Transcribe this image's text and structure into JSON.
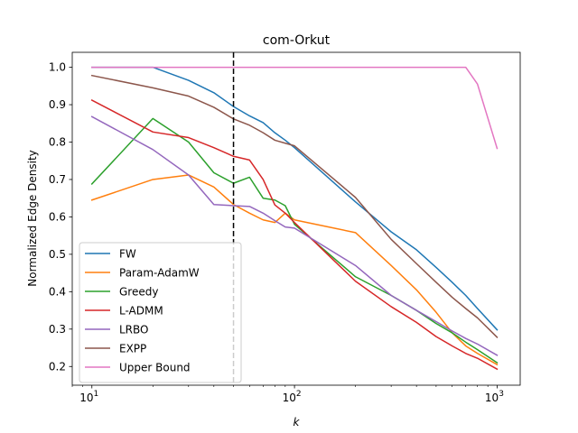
{
  "chart_data": {
    "type": "line",
    "title": "com-Orkut",
    "xlabel": "k",
    "ylabel": "Normalized Edge Density",
    "xscale": "log",
    "xlim": [
      8,
      1300
    ],
    "ylim": [
      0.15,
      1.04
    ],
    "xticks": [
      {
        "base": "10",
        "exp": "1",
        "value": 10
      },
      {
        "base": "10",
        "exp": "2",
        "value": 100
      },
      {
        "base": "10",
        "exp": "3",
        "value": 1000
      }
    ],
    "yticks": [
      "0.2",
      "0.3",
      "0.4",
      "0.5",
      "0.6",
      "0.7",
      "0.8",
      "0.9",
      "1.0"
    ],
    "vline": {
      "x": 50,
      "style": "dashed",
      "color": "#000000"
    },
    "legend_position": "lower-left",
    "series": [
      {
        "name": "FW",
        "color": "#1f77b4",
        "x": [
          10,
          20,
          30,
          40,
          50,
          60,
          70,
          80,
          90,
          100,
          200,
          300,
          400,
          500,
          600,
          700,
          800,
          1000
        ],
        "y": [
          1.0,
          1.0,
          0.965,
          0.932,
          0.895,
          0.87,
          0.852,
          0.825,
          0.805,
          0.785,
          0.64,
          0.56,
          0.512,
          0.465,
          0.425,
          0.39,
          0.355,
          0.298
        ]
      },
      {
        "name": "Param-AdamW",
        "color": "#ff7f0e",
        "x": [
          10,
          20,
          30,
          40,
          50,
          60,
          70,
          80,
          90,
          100,
          200,
          300,
          400,
          500,
          600,
          700,
          800,
          1000
        ],
        "y": [
          0.645,
          0.7,
          0.712,
          0.68,
          0.633,
          0.61,
          0.592,
          0.585,
          0.61,
          0.592,
          0.558,
          0.47,
          0.405,
          0.345,
          0.29,
          0.255,
          0.235,
          0.205
        ]
      },
      {
        "name": "Greedy",
        "color": "#2ca02c",
        "x": [
          10,
          20,
          30,
          40,
          50,
          60,
          70,
          80,
          90,
          100,
          200,
          300,
          400,
          500,
          600,
          700,
          800,
          1000
        ],
        "y": [
          0.688,
          0.863,
          0.8,
          0.718,
          0.69,
          0.706,
          0.65,
          0.645,
          0.63,
          0.58,
          0.44,
          0.39,
          0.35,
          0.315,
          0.29,
          0.265,
          0.245,
          0.21
        ]
      },
      {
        "name": "L-ADMM",
        "color": "#d62728",
        "x": [
          10,
          20,
          30,
          40,
          50,
          60,
          70,
          80,
          90,
          100,
          200,
          300,
          400,
          500,
          600,
          700,
          800,
          1000
        ],
        "y": [
          0.912,
          0.827,
          0.812,
          0.785,
          0.762,
          0.752,
          0.7,
          0.632,
          0.61,
          0.585,
          0.428,
          0.36,
          0.318,
          0.28,
          0.255,
          0.235,
          0.222,
          0.193
        ]
      },
      {
        "name": "LRBO",
        "color": "#9467bd",
        "x": [
          10,
          20,
          30,
          40,
          50,
          60,
          70,
          80,
          90,
          100,
          200,
          300,
          400,
          500,
          600,
          700,
          800,
          1000
        ],
        "y": [
          0.868,
          0.78,
          0.712,
          0.633,
          0.63,
          0.628,
          0.61,
          0.59,
          0.573,
          0.57,
          0.47,
          0.39,
          0.35,
          0.32,
          0.295,
          0.275,
          0.26,
          0.23
        ]
      },
      {
        "name": "EXPP",
        "color": "#8c564b",
        "x": [
          10,
          20,
          30,
          40,
          50,
          60,
          70,
          80,
          90,
          100,
          200,
          300,
          400,
          500,
          600,
          700,
          800,
          1000
        ],
        "y": [
          0.978,
          0.945,
          0.923,
          0.893,
          0.862,
          0.845,
          0.825,
          0.805,
          0.797,
          0.79,
          0.652,
          0.54,
          0.475,
          0.425,
          0.385,
          0.355,
          0.33,
          0.278
        ]
      },
      {
        "name": "Upper Bound",
        "color": "#e377c2",
        "x": [
          10,
          20,
          50,
          100,
          200,
          300,
          400,
          500,
          600,
          700,
          800,
          1000
        ],
        "y": [
          1.0,
          1.0,
          1.0,
          1.0,
          1.0,
          1.0,
          1.0,
          1.0,
          1.0,
          1.0,
          0.955,
          0.783
        ]
      }
    ]
  }
}
